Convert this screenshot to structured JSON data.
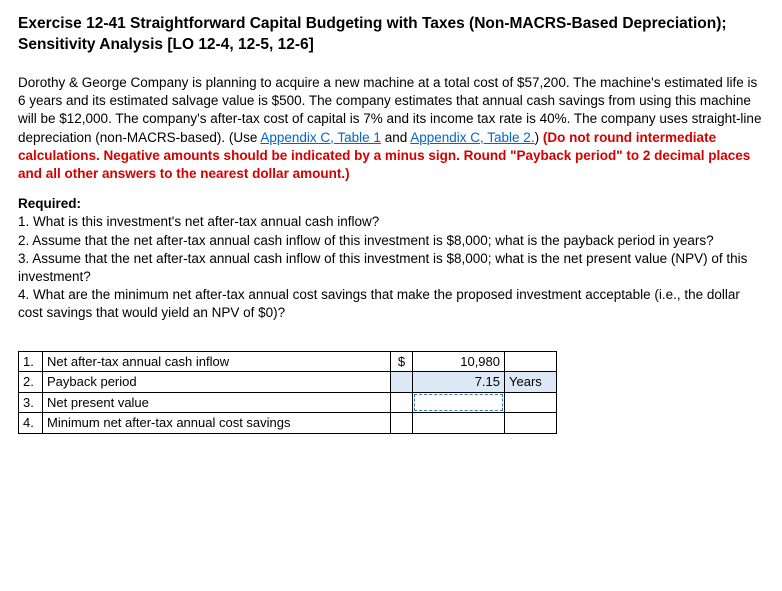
{
  "title": "Exercise 12-41 Straightforward Capital Budgeting with Taxes (Non-MACRS-Based Depreciation); Sensitivity Analysis [LO 12-4, 12-5, 12-6]",
  "paragraph": {
    "pre": "Dorothy & George Company is planning to acquire a new machine at a total cost of $57,200. The machine's estimated life is 6 years and its estimated salvage value is $500. The company estimates that annual cash savings from using this machine will be $12,000. The company's after-tax cost of capital is 7% and its income tax rate is 40%. The company uses straight-line depreciation (non-MACRS-based). (Use ",
    "link1": "Appendix C, Table 1",
    "mid": "  and ",
    "link2": "Appendix C, Table 2.",
    "close": ") ",
    "red": "(Do not round intermediate calculations. Negative amounts should be indicated by a minus sign. Round \"Payback period\" to 2 decimal places and all other answers to the nearest dollar amount.)"
  },
  "required_label": "Required:",
  "questions": {
    "q1": "1. What is this investment's net after-tax annual cash inflow?",
    "q2": "2. Assume that the net after-tax annual cash inflow of this investment is $8,000; what is the payback period in years?",
    "q3": "3. Assume that the net after-tax annual cash inflow of this investment is $8,000; what is the net present value (NPV) of this investment?",
    "q4": "4. What are the minimum net after-tax annual cost savings that make the proposed investment acceptable (i.e., the dollar cost savings that would yield an NPV of $0)?"
  },
  "table": {
    "rows": [
      {
        "n": "1.",
        "label": "Net after-tax annual cash inflow",
        "cur": "$",
        "val": "10,980",
        "unit": "",
        "active": false,
        "dotted": false
      },
      {
        "n": "2.",
        "label": "Payback period",
        "cur": "",
        "val": "7.15",
        "unit": "Years",
        "active": true,
        "dotted": false
      },
      {
        "n": "3.",
        "label": "Net present value",
        "cur": "",
        "val": "",
        "unit": "",
        "active": false,
        "dotted": true
      },
      {
        "n": "4.",
        "label": "Minimum net after-tax annual cost savings",
        "cur": "",
        "val": "",
        "unit": "",
        "active": false,
        "dotted": false
      }
    ]
  }
}
